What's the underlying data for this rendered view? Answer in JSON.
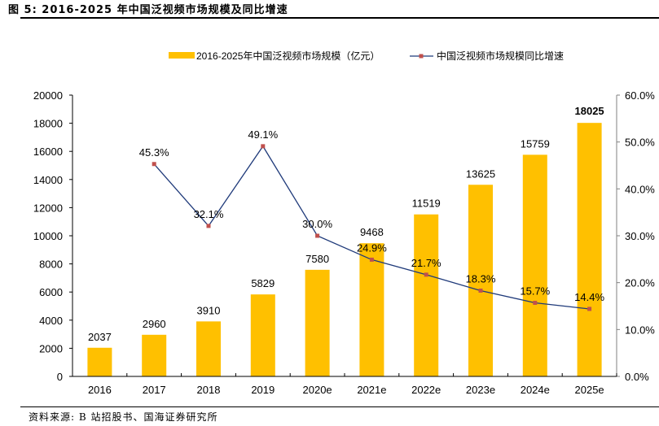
{
  "figure": {
    "title": "图 5:  2016-2025 年中国泛视频市场规模及同比增速",
    "source": "资料来源: B 站招股书、国海证券研究所"
  },
  "colors": {
    "bar": "#FFC000",
    "line": "#1F3A7A",
    "marker": "#C0504D",
    "axis": "#000000"
  },
  "chart_data": {
    "type": "bar+line",
    "title": "2016-2025 年中国泛视频市场规模及同比增速",
    "categories": [
      "2016",
      "2017",
      "2018",
      "2019",
      "2020e",
      "2021e",
      "2022e",
      "2023e",
      "2024e",
      "2025e"
    ],
    "series": [
      {
        "name": "2016-2025年中国泛视频市场规模（亿元）",
        "type": "bar",
        "axis": "left",
        "values": [
          2037,
          2960,
          3910,
          5829,
          7580,
          9468,
          11519,
          13625,
          15759,
          18025
        ],
        "labels": [
          "2037",
          "2960",
          "3910",
          "5829",
          "7580",
          "9468",
          "11519",
          "13625",
          "15759",
          "18025"
        ]
      },
      {
        "name": "中国泛视频市场规模同比增速",
        "type": "line",
        "axis": "right",
        "values": [
          null,
          45.3,
          32.1,
          49.1,
          30.0,
          24.9,
          21.7,
          18.3,
          15.7,
          14.4
        ],
        "labels": [
          "",
          "45.3%",
          "32.1%",
          "49.1%",
          "30.0%",
          "24.9%",
          "21.7%",
          "18.3%",
          "15.7%",
          "14.4%"
        ]
      }
    ],
    "left_axis": {
      "ylim": [
        0,
        20000
      ],
      "ticks": [
        "0",
        "2000",
        "4000",
        "6000",
        "8000",
        "10000",
        "12000",
        "14000",
        "16000",
        "18000",
        "20000"
      ]
    },
    "right_axis": {
      "ylim": [
        0,
        60
      ],
      "ticks": [
        "0.0%",
        "10.0%",
        "20.0%",
        "30.0%",
        "40.0%",
        "50.0%",
        "60.0%"
      ]
    },
    "xlabel": "",
    "ylabel": "",
    "grid": false,
    "legend": "top-center"
  }
}
